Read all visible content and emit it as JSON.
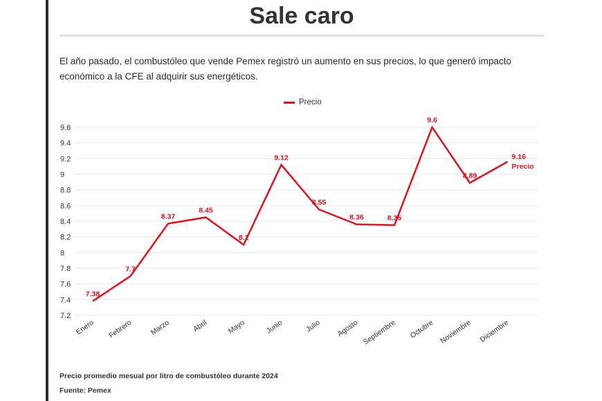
{
  "header": {
    "title": "Sale caro",
    "intro": "El año pasado, el combustóleo que vende Pemex registró un aumento en sus precios, lo que generó impacto económico a la CFE al adquirir sus energéticos."
  },
  "footer": {
    "caption": "Precio promedio mesual por litro de combustóleo durante 2024",
    "source": "Fuente: Pemex"
  },
  "colors": {
    "series": "#e3111b",
    "grid": "#e6e6e6",
    "axis_text": "#333333"
  },
  "chart_data": {
    "type": "line",
    "title": "",
    "xlabel": "",
    "ylabel": "",
    "legend": {
      "position": "top-center"
    },
    "grid": true,
    "ylim": [
      7.2,
      9.6
    ],
    "yticks": [
      7.2,
      7.4,
      7.6,
      7.8,
      8,
      8.2,
      8.4,
      8.6,
      8.8,
      9,
      9.2,
      9.4,
      9.6
    ],
    "categories": [
      "Enero",
      "Febrero",
      "Marzo",
      "Abril",
      "Mayo",
      "Junio",
      "Julio",
      "Agosto",
      "Septiembre",
      "Octubre",
      "Noviembre",
      "Diciembre"
    ],
    "series": [
      {
        "name": "Precio",
        "values": [
          7.38,
          7.7,
          8.37,
          8.45,
          8.1,
          9.12,
          8.55,
          8.36,
          8.35,
          9.6,
          8.89,
          9.16
        ],
        "labels": [
          "7.38",
          "7.7",
          "8.37",
          "8.45",
          "8.1",
          "9.12",
          "8.55",
          "8.36",
          "8.35",
          "9.6",
          "8.89",
          "9.16"
        ]
      }
    ],
    "end_label": "Precio"
  }
}
